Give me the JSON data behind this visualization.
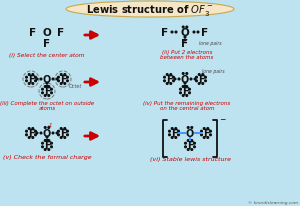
{
  "title": "Lewis structure of OF₃⁻",
  "bg_color": "#bde3f0",
  "title_bg": "#f5e6c8",
  "arrow_color": "#cc0000",
  "label_color": "#cc0000",
  "dot_color": "#111111",
  "bond_color": "#4499ff",
  "bracket_color": "#111111",
  "watermark": "© knordislearning.com",
  "step_labels": [
    "(i) Select the center atom",
    "(ii) Put 2 electrons\nbetween the atoms",
    "(iii) Complete the octet on outside\natoms",
    "(iv) Put the remaining electrons\non the central atom",
    "(v) Check the formal charge",
    "(vi) Stable lewis structure"
  ],
  "lone_pairs_label": "lone pairs",
  "octet_label": "Octet"
}
